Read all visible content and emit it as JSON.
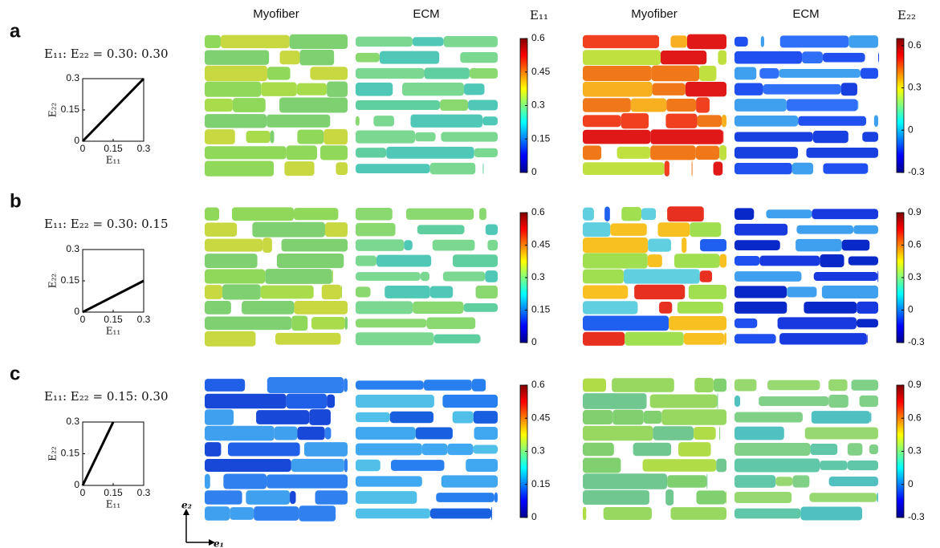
{
  "headers": [
    "Myofiber",
    "ECM",
    "E₁₁",
    "Myofiber",
    "ECM",
    "E₂₂"
  ],
  "rows": [
    {
      "label": "a",
      "ratio": "E₁₁: E₂₂ = 0.30: 0.30",
      "chart": {
        "type": "line",
        "x": [
          0,
          0.3
        ],
        "y": [
          0,
          0.3
        ],
        "xlim": [
          0,
          0.3
        ],
        "ylim": [
          0,
          0.3
        ],
        "xticks": [
          0,
          0.15,
          0.3
        ],
        "yticks": [
          0,
          0.15,
          0.3
        ],
        "xlabel": "E₁₁",
        "ylabel": "E₂₂"
      },
      "colorbars": [
        {
          "lim": [
            0,
            0.6
          ],
          "ticks": [
            0,
            0.15,
            0.3,
            0.45,
            0.6
          ]
        },
        {
          "lim": [
            -0.3,
            0.65
          ],
          "ticks": [
            -0.3,
            0,
            0.3,
            0.6
          ]
        }
      ]
    },
    {
      "label": "b",
      "ratio": "E₁₁: E₂₂ = 0.30: 0.15",
      "chart": {
        "type": "line",
        "x": [
          0,
          0.3
        ],
        "y": [
          0,
          0.15
        ],
        "xlim": [
          0,
          0.3
        ],
        "ylim": [
          0,
          0.3
        ],
        "xticks": [
          0,
          0.15,
          0.3
        ],
        "yticks": [
          0,
          0.15,
          0.3
        ],
        "xlabel": "E₁₁",
        "ylabel": "E₂₂"
      },
      "colorbars": [
        {
          "lim": [
            0,
            0.6
          ],
          "ticks": [
            0,
            0.15,
            0.3,
            0.45,
            0.6
          ]
        },
        {
          "lim": [
            -0.3,
            0.9
          ],
          "ticks": [
            -0.3,
            0,
            0.3,
            0.6,
            0.9
          ]
        }
      ]
    },
    {
      "label": "c",
      "ratio": "E₁₁: E₂₂ = 0.15: 0.30",
      "chart": {
        "type": "line",
        "x": [
          0,
          0.15
        ],
        "y": [
          0,
          0.3
        ],
        "xlim": [
          0,
          0.3
        ],
        "ylim": [
          0,
          0.3
        ],
        "xticks": [
          0,
          0.15,
          0.3
        ],
        "yticks": [
          0,
          0.15,
          0.3
        ],
        "xlabel": "E₁₁",
        "ylabel": "E₂₂"
      },
      "colorbars": [
        {
          "lim": [
            0,
            0.6
          ],
          "ticks": [
            0,
            0.15,
            0.3,
            0.45,
            0.6
          ]
        },
        {
          "lim": [
            -0.3,
            0.9
          ],
          "ticks": [
            -0.3,
            0,
            0.3,
            0.6,
            0.9
          ]
        }
      ]
    }
  ],
  "axes": {
    "e2": "e₂",
    "e1": "e₁"
  }
}
